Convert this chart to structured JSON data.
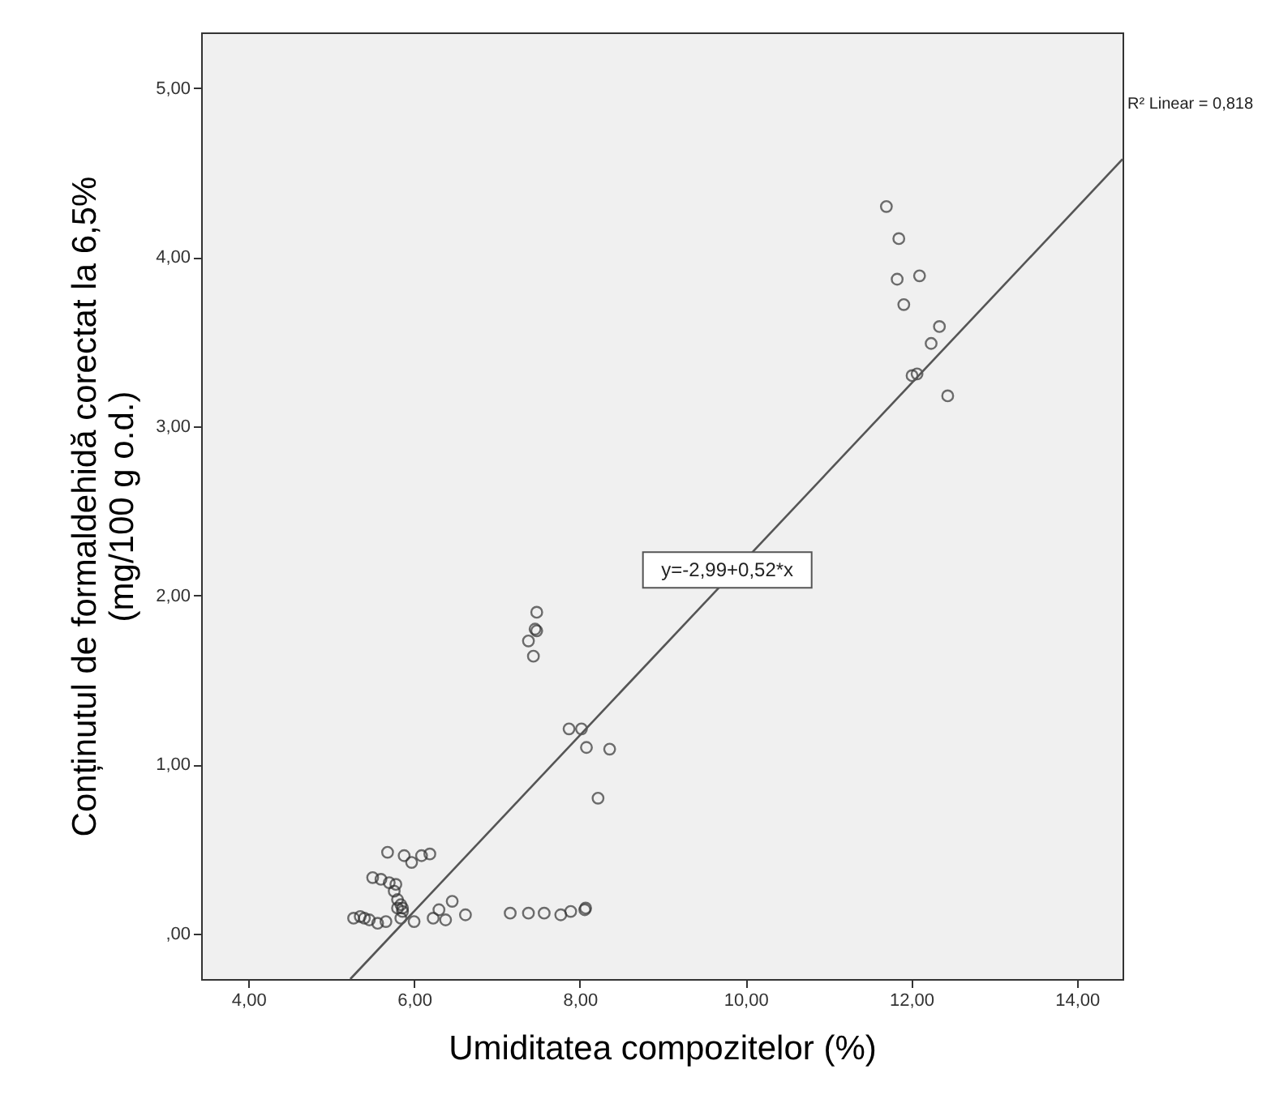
{
  "chart_data": {
    "type": "scatter",
    "xlabel": "Umiditatea compozitelor (%)",
    "ylabel": "Conținutul de formaldehidă corectat la 6,5%\n(mg/100 g o.d.)",
    "xlim": [
      3.43,
      14.55
    ],
    "ylim": [
      -0.27,
      5.33
    ],
    "xticks": [
      {
        "value": 4,
        "label": "4,00"
      },
      {
        "value": 6,
        "label": "6,00"
      },
      {
        "value": 8,
        "label": "8,00"
      },
      {
        "value": 10,
        "label": "10,00"
      },
      {
        "value": 12,
        "label": "12,00"
      },
      {
        "value": 14,
        "label": "14,00"
      }
    ],
    "yticks": [
      {
        "value": 0,
        "label": ",00"
      },
      {
        "value": 1,
        "label": "1,00"
      },
      {
        "value": 2,
        "label": "2,00"
      },
      {
        "value": 3,
        "label": "3,00"
      },
      {
        "value": 4,
        "label": "4,00"
      },
      {
        "value": 5,
        "label": "5,00"
      }
    ],
    "grid": false,
    "series": [
      {
        "color": "#333333",
        "marker": "circle",
        "x": [
          11.7,
          11.85,
          11.83,
          12.1,
          11.91,
          12.34,
          12.24,
          12.01,
          12.07,
          12.44,
          7.48,
          7.46,
          7.48,
          7.38,
          7.44,
          7.87,
          8.02,
          8.08,
          8.36,
          8.22,
          5.68,
          5.88,
          5.97,
          6.09,
          6.19,
          5.5,
          5.6,
          5.7,
          5.78,
          5.76,
          5.8,
          5.84,
          5.86,
          7.16,
          7.38,
          7.57,
          7.77,
          7.89,
          8.06,
          8.07,
          6.3,
          6.46,
          6.62,
          6.23,
          6.38,
          5.27,
          5.35,
          5.4,
          5.46,
          5.56,
          5.66,
          5.84,
          6.0,
          5.8,
          5.86
        ],
        "values": [
          4.3,
          4.11,
          3.87,
          3.89,
          3.72,
          3.59,
          3.49,
          3.3,
          3.31,
          3.18,
          1.9,
          1.8,
          1.79,
          1.73,
          1.64,
          1.21,
          1.21,
          1.1,
          1.09,
          0.8,
          0.48,
          0.46,
          0.42,
          0.46,
          0.47,
          0.33,
          0.32,
          0.3,
          0.29,
          0.25,
          0.2,
          0.17,
          0.15,
          0.12,
          0.12,
          0.12,
          0.11,
          0.13,
          0.14,
          0.15,
          0.14,
          0.19,
          0.11,
          0.09,
          0.08,
          0.09,
          0.1,
          0.09,
          0.08,
          0.06,
          0.07,
          0.09,
          0.07,
          0.15,
          0.13
        ]
      },
      {
        "type": "line",
        "color": "#555555",
        "marker": "none",
        "line_style": "solid",
        "x": [
          5.23,
          14.55
        ],
        "values": [
          -0.27,
          4.58
        ]
      }
    ],
    "annotations": [
      {
        "text": "y=-2,99+0,52*x",
        "x": 9.78,
        "y": 2.15
      },
      "R² Linear = 0,818"
    ]
  }
}
